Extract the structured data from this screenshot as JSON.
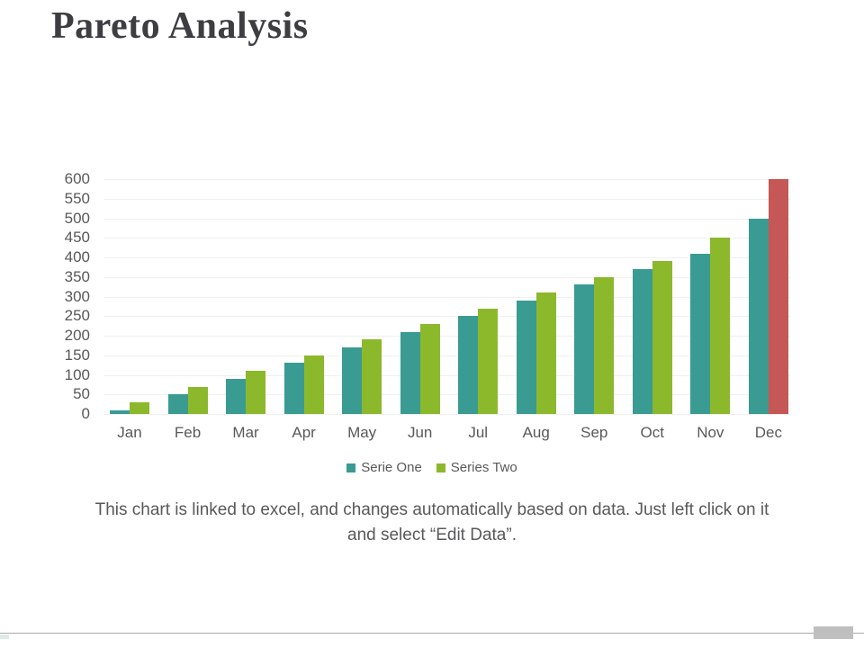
{
  "slide": {
    "title": "Pareto Analysis",
    "caption": "This chart is linked to excel, and changes automatically based on data. Just left click on it and select “Edit Data”."
  },
  "chart_data": {
    "type": "bar",
    "categories": [
      "Jan",
      "Feb",
      "Mar",
      "Apr",
      "May",
      "Jun",
      "Jul",
      "Aug",
      "Sep",
      "Oct",
      "Nov",
      "Dec"
    ],
    "series": [
      {
        "name": "Serie One",
        "color": "#3a9b93",
        "values": [
          10,
          50,
          90,
          130,
          170,
          210,
          250,
          290,
          330,
          370,
          410,
          500
        ]
      },
      {
        "name": "Series Two",
        "color": "#8cb82c",
        "values": [
          30,
          70,
          110,
          150,
          190,
          230,
          270,
          310,
          350,
          390,
          450,
          600
        ],
        "point_colors": {
          "11": "#c55856"
        }
      }
    ],
    "title": "",
    "xlabel": "",
    "ylabel": "",
    "ylim": [
      0,
      600
    ],
    "ytick_step": 50,
    "yticks": [
      600,
      550,
      500,
      450,
      400,
      350,
      300,
      250,
      200,
      150,
      100,
      50,
      0
    ],
    "grid": true,
    "gridline_color": "#f0f0f0",
    "axis_label_color": "#595959",
    "legend_position": "bottom"
  },
  "footer": {
    "divider_color": "#a9a9a9",
    "slide_number_box_color": "#bfbfbf",
    "accent_color": "#dcebe6"
  }
}
